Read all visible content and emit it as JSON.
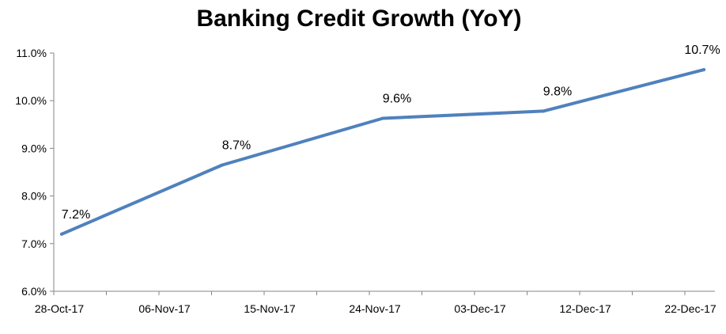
{
  "chart_data": {
    "type": "line",
    "title": "Banking Credit Growth (YoY)",
    "xlabel": "",
    "ylabel": "",
    "x_tick_labels": [
      "28-Oct-17",
      "06-Nov-17",
      "15-Nov-17",
      "24-Nov-17",
      "03-Dec-17",
      "12-Dec-17",
      "22-Dec-17"
    ],
    "y_tick_labels": [
      "6.0%",
      "7.0%",
      "8.0%",
      "9.0%",
      "10.0%",
      "11.0%"
    ],
    "ylim": [
      6.0,
      11.0
    ],
    "y_ticks": [
      6.0,
      7.0,
      8.0,
      9.0,
      10.0,
      11.0
    ],
    "grid": false,
    "legend": "none",
    "line_color": "#4F81BD",
    "series": [
      {
        "x": [
          "2017-10-27",
          "2017-11-10",
          "2017-11-24",
          "2017-12-08",
          "2017-12-22"
        ],
        "values": [
          7.2,
          8.65,
          9.63,
          9.78,
          10.65
        ],
        "data_labels": [
          "7.2%",
          "8.7%",
          "9.6%",
          "9.8%",
          "10.7%"
        ]
      }
    ]
  }
}
